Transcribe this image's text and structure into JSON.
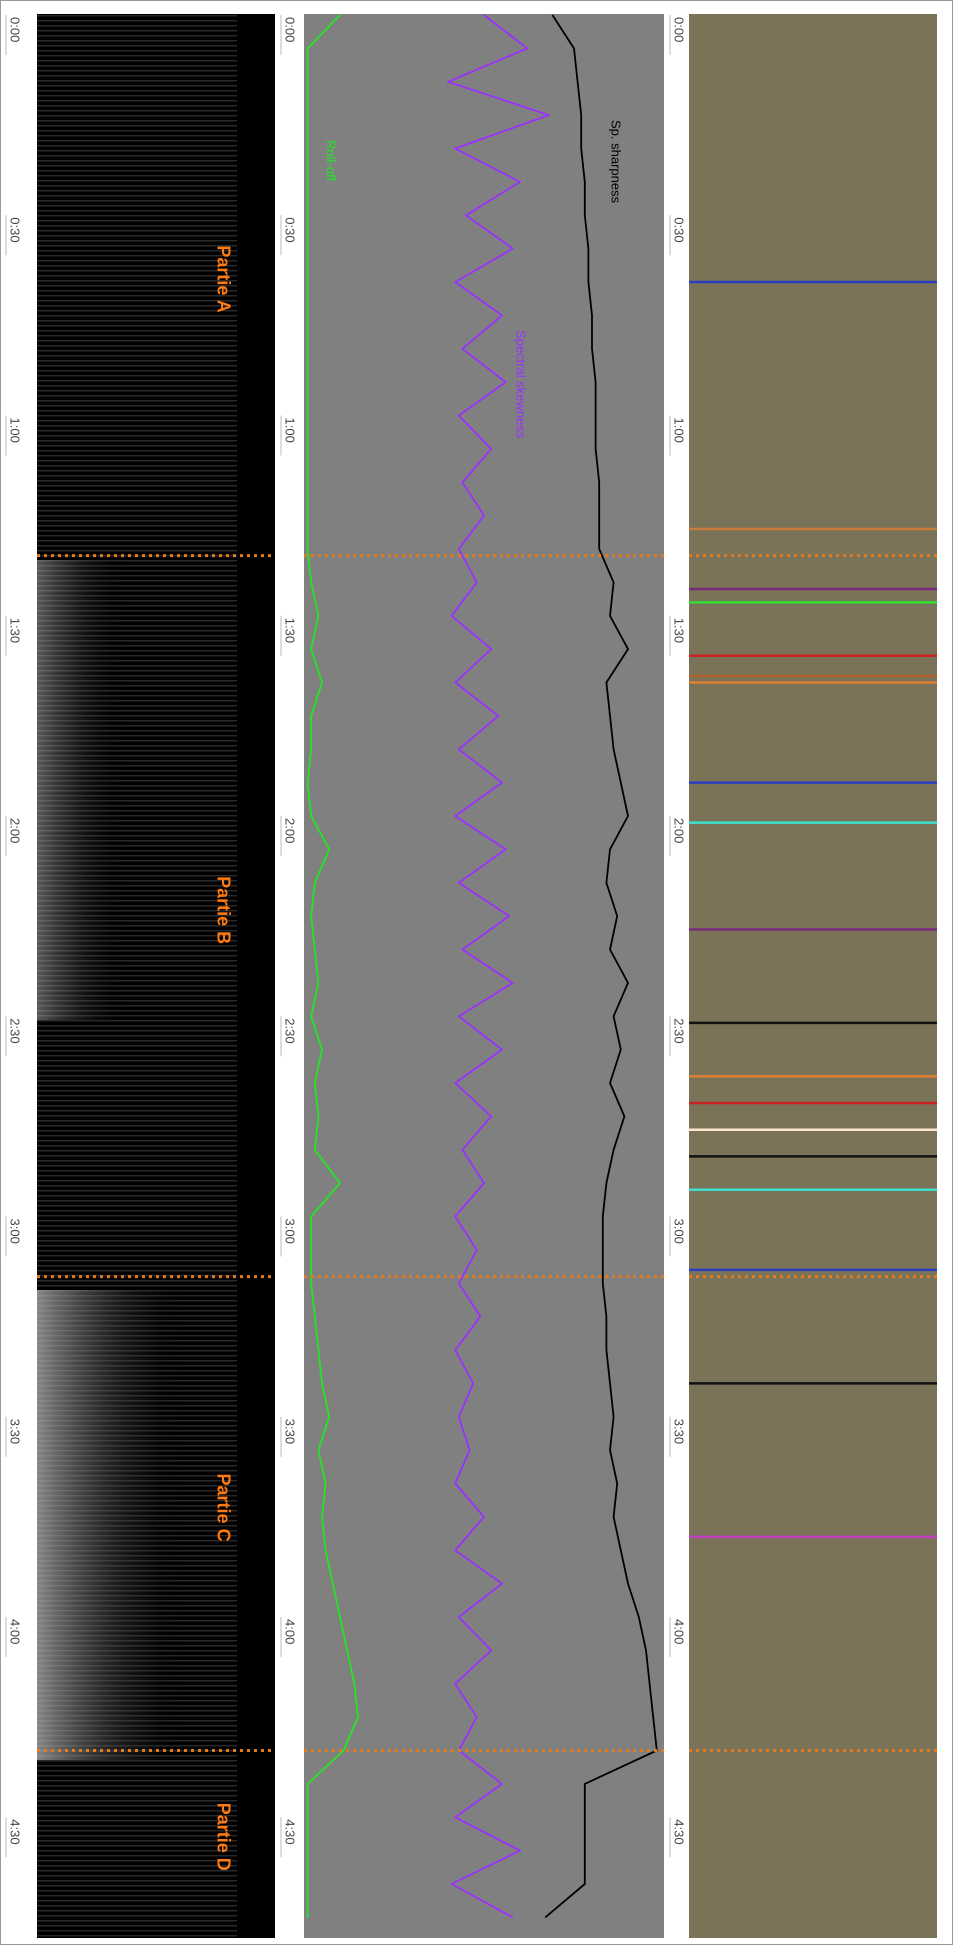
{
  "timeline": {
    "ticks": [
      {
        "value": 0,
        "label": "0:00"
      },
      {
        "value": 30,
        "label": "0:30"
      },
      {
        "value": 60,
        "label": "1:00"
      },
      {
        "value": 90,
        "label": "1:30"
      },
      {
        "value": 120,
        "label": "2:00"
      },
      {
        "value": 150,
        "label": "2:30"
      },
      {
        "value": 180,
        "label": "3:00"
      },
      {
        "value": 210,
        "label": "3:30"
      },
      {
        "value": 240,
        "label": "4:00"
      },
      {
        "value": 270,
        "label": "4:30"
      }
    ]
  },
  "sections": [
    {
      "label": "Partie A",
      "start": 0
    },
    {
      "label": "Partie B",
      "start": 81
    },
    {
      "label": "Partie C",
      "start": 189
    },
    {
      "label": "Partie D",
      "start": 260
    }
  ],
  "features": {
    "x": [
      0,
      5,
      10,
      15,
      20,
      25,
      30,
      35,
      40,
      45,
      50,
      55,
      60,
      65,
      70,
      75,
      80,
      85,
      90,
      95,
      100,
      105,
      110,
      115,
      120,
      125,
      130,
      135,
      140,
      145,
      150,
      155,
      160,
      165,
      170,
      175,
      180,
      185,
      190,
      195,
      200,
      205,
      210,
      215,
      220,
      225,
      230,
      235,
      240,
      245,
      250,
      255,
      260,
      265,
      270,
      275,
      280,
      285
    ],
    "series": [
      {
        "name": "Roll-off",
        "color": "#22e622",
        "values": [
          10,
          1,
          1,
          1,
          1,
          1,
          1,
          1,
          1,
          1,
          1,
          1,
          1,
          1,
          1,
          1,
          1,
          2,
          4,
          2,
          5,
          2,
          2,
          1,
          2,
          7,
          3,
          2,
          3,
          4,
          2,
          5,
          3,
          4,
          3,
          10,
          2,
          2,
          2,
          3,
          4,
          5,
          7,
          4,
          6,
          5,
          6,
          8,
          10,
          12,
          14,
          15,
          11,
          1,
          1,
          1,
          1,
          1
        ]
      },
      {
        "name": "Spectral skewness",
        "color": "#9b30ff",
        "values": [
          50,
          62,
          40,
          68,
          42,
          60,
          45,
          58,
          42,
          55,
          44,
          56,
          43,
          52,
          44,
          50,
          43,
          48,
          41,
          52,
          42,
          54,
          43,
          55,
          42,
          56,
          43,
          57,
          44,
          58,
          43,
          55,
          42,
          52,
          44,
          50,
          42,
          48,
          43,
          49,
          42,
          47,
          43,
          46,
          42,
          50,
          42,
          55,
          43,
          52,
          42,
          48,
          43,
          55,
          42,
          60,
          41,
          58
        ]
      },
      {
        "name": "Sp. sharpness",
        "color": "#000000",
        "values": [
          69,
          75,
          76,
          77,
          77,
          78,
          78,
          79,
          79,
          80,
          80,
          81,
          81,
          81,
          82,
          82,
          82,
          86,
          85,
          90,
          84,
          85,
          86,
          88,
          90,
          85,
          84,
          87,
          85,
          90,
          86,
          88,
          85,
          89,
          86,
          84,
          83,
          83,
          83,
          84,
          84,
          85,
          86,
          85,
          87,
          86,
          88,
          90,
          93,
          95,
          96,
          97,
          98,
          78,
          78,
          78,
          78,
          67
        ]
      }
    ]
  },
  "events": [
    {
      "time": 40,
      "color": "#2a3fc0"
    },
    {
      "time": 77,
      "color": "#c87a3a"
    },
    {
      "time": 86,
      "color": "#7a2a7a"
    },
    {
      "time": 88,
      "color": "#33dd33"
    },
    {
      "time": 96,
      "color": "#cc2222"
    },
    {
      "time": 99,
      "color": "#b0602a"
    },
    {
      "time": 100,
      "color": "#e08030"
    },
    {
      "time": 115,
      "color": "#2a3fc0"
    },
    {
      "time": 121,
      "color": "#40e0d0"
    },
    {
      "time": 137,
      "color": "#7a2a7a"
    },
    {
      "time": 151,
      "color": "#111111"
    },
    {
      "time": 159,
      "color": "#e08030"
    },
    {
      "time": 163,
      "color": "#cc2222"
    },
    {
      "time": 167,
      "color": "#ffe8d0"
    },
    {
      "time": 171,
      "color": "#111111"
    },
    {
      "time": 176,
      "color": "#40e0d0"
    },
    {
      "time": 188,
      "color": "#2a3fc0"
    },
    {
      "time": 205,
      "color": "#111111"
    },
    {
      "time": 228,
      "color": "#c040c0"
    }
  ]
}
